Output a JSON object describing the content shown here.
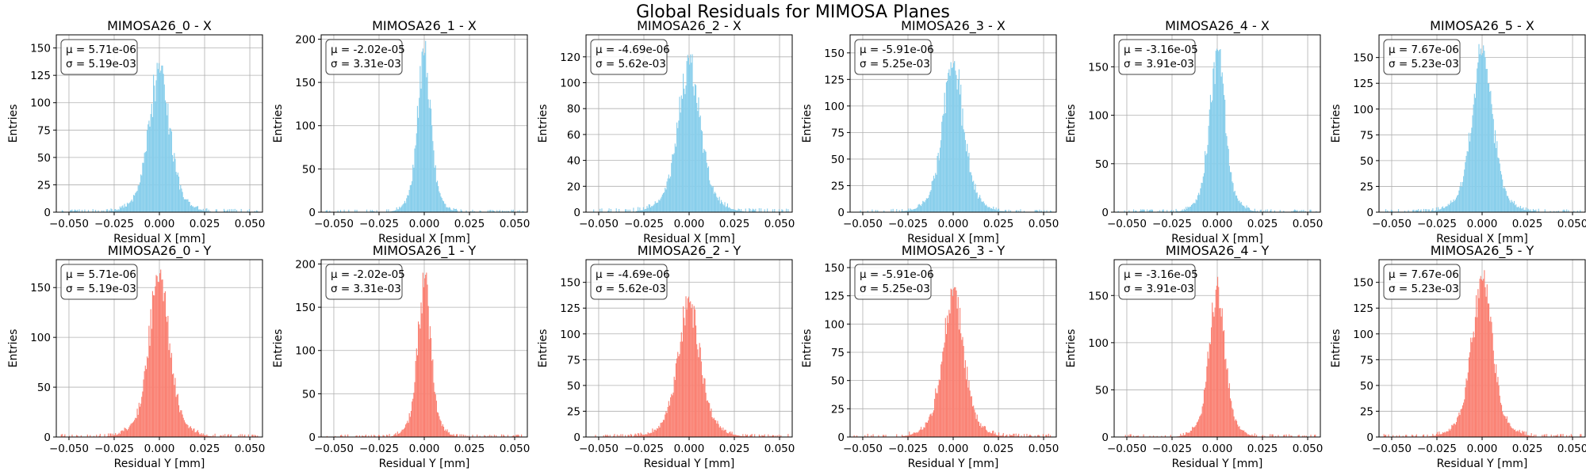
{
  "suptitle": "Global Residuals for MIMOSA Planes",
  "colors": {
    "x_hist": "#87ceeb",
    "y_hist": "#fa8072",
    "grid": "#b0b0b0"
  },
  "chart_data": [
    {
      "type": "histogram",
      "title": "MIMOSA26_0 - X",
      "xlabel": "Residual X [mm]",
      "ylabel": "Entries",
      "xlim": [
        -0.057,
        0.057
      ],
      "ylim": [
        0,
        162
      ],
      "xticks": [
        -0.05,
        -0.025,
        0.0,
        0.025,
        0.05
      ],
      "xtick_labels": [
        "−0.050",
        "−0.025",
        "0.000",
        "0.025",
        "0.050"
      ],
      "yticks": [
        0,
        25,
        50,
        75,
        100,
        125,
        150
      ],
      "ytick_labels": [
        "0",
        "25",
        "50",
        "75",
        "100",
        "125",
        "150"
      ],
      "grid": true,
      "series": [
        {
          "type": "hist",
          "color": "#87ceeb",
          "peak": 138,
          "mean": 5.71e-06,
          "sigma": 0.00519
        }
      ],
      "stats": {
        "mu": "μ = 5.71e-06",
        "sigma": "σ = 5.19e-03"
      }
    },
    {
      "type": "histogram",
      "title": "MIMOSA26_1 - X",
      "xlabel": "Residual X [mm]",
      "ylabel": "Entries",
      "xlim": [
        -0.057,
        0.057
      ],
      "ylim": [
        0,
        205
      ],
      "xticks": [
        -0.05,
        -0.025,
        0.0,
        0.025,
        0.05
      ],
      "xtick_labels": [
        "−0.050",
        "−0.025",
        "0.000",
        "0.025",
        "0.050"
      ],
      "yticks": [
        0,
        50,
        100,
        150,
        200
      ],
      "ytick_labels": [
        "0",
        "50",
        "100",
        "150",
        "200"
      ],
      "grid": true,
      "series": [
        {
          "type": "hist",
          "color": "#87ceeb",
          "peak": 198,
          "mean": -2.02e-05,
          "sigma": 0.00331
        }
      ],
      "stats": {
        "mu": "μ = -2.02e-05",
        "sigma": "σ = 3.31e-03"
      }
    },
    {
      "type": "histogram",
      "title": "MIMOSA26_2 - X",
      "xlabel": "Residual X [mm]",
      "ylabel": "Entries",
      "xlim": [
        -0.057,
        0.057
      ],
      "ylim": [
        0,
        137
      ],
      "xticks": [
        -0.05,
        -0.025,
        0.0,
        0.025,
        0.05
      ],
      "xtick_labels": [
        "−0.050",
        "−0.025",
        "0.000",
        "0.025",
        "0.050"
      ],
      "yticks": [
        0,
        20,
        40,
        60,
        80,
        100,
        120
      ],
      "ytick_labels": [
        "0",
        "20",
        "40",
        "60",
        "80",
        "100",
        "120"
      ],
      "grid": true,
      "series": [
        {
          "type": "hist",
          "color": "#87ceeb",
          "peak": 122,
          "mean": -4.69e-06,
          "sigma": 0.00562
        }
      ],
      "stats": {
        "mu": "μ = -4.69e-06",
        "sigma": "σ = 5.62e-03"
      }
    },
    {
      "type": "histogram",
      "title": "MIMOSA26_3 - X",
      "xlabel": "Residual X [mm]",
      "ylabel": "Entries",
      "xlim": [
        -0.057,
        0.057
      ],
      "ylim": [
        0,
        167
      ],
      "xticks": [
        -0.05,
        -0.025,
        0.0,
        0.025,
        0.05
      ],
      "xtick_labels": [
        "−0.050",
        "−0.025",
        "0.000",
        "0.025",
        "0.050"
      ],
      "yticks": [
        0,
        25,
        50,
        75,
        100,
        125,
        150
      ],
      "ytick_labels": [
        "0",
        "25",
        "50",
        "75",
        "100",
        "125",
        "150"
      ],
      "grid": true,
      "series": [
        {
          "type": "hist",
          "color": "#87ceeb",
          "peak": 145,
          "mean": -5.91e-06,
          "sigma": 0.00525
        }
      ],
      "stats": {
        "mu": "μ = -5.91e-06",
        "sigma": "σ = 5.25e-03"
      }
    },
    {
      "type": "histogram",
      "title": "MIMOSA26_4 - X",
      "xlabel": "Residual X [mm]",
      "ylabel": "Entries",
      "xlim": [
        -0.057,
        0.057
      ],
      "ylim": [
        0,
        183
      ],
      "xticks": [
        -0.05,
        -0.025,
        0.0,
        0.025,
        0.05
      ],
      "xtick_labels": [
        "−0.050",
        "−0.025",
        "0.000",
        "0.025",
        "0.050"
      ],
      "yticks": [
        0,
        50,
        100,
        150
      ],
      "ytick_labels": [
        "0",
        "50",
        "100",
        "150"
      ],
      "grid": true,
      "series": [
        {
          "type": "hist",
          "color": "#87ceeb",
          "peak": 175,
          "mean": -3.16e-05,
          "sigma": 0.00391
        }
      ],
      "stats": {
        "mu": "μ = -3.16e-05",
        "sigma": "σ = 3.91e-03"
      }
    },
    {
      "type": "histogram",
      "title": "MIMOSA26_5 - X",
      "xlabel": "Residual X [mm]",
      "ylabel": "Entries",
      "xlim": [
        -0.057,
        0.057
      ],
      "ylim": [
        0,
        172
      ],
      "xticks": [
        -0.05,
        -0.025,
        0.0,
        0.025,
        0.05
      ],
      "xtick_labels": [
        "−0.050",
        "−0.025",
        "0.000",
        "0.025",
        "0.050"
      ],
      "yticks": [
        0,
        25,
        50,
        75,
        100,
        125,
        150
      ],
      "ytick_labels": [
        "0",
        "25",
        "50",
        "75",
        "100",
        "125",
        "150"
      ],
      "grid": true,
      "series": [
        {
          "type": "hist",
          "color": "#87ceeb",
          "peak": 163,
          "mean": 7.67e-06,
          "sigma": 0.00523
        }
      ],
      "stats": {
        "mu": "μ = 7.67e-06",
        "sigma": "σ = 5.23e-03"
      }
    },
    {
      "type": "histogram",
      "title": "MIMOSA26_0 - Y",
      "xlabel": "Residual Y [mm]",
      "ylabel": "Entries",
      "xlim": [
        -0.057,
        0.057
      ],
      "ylim": [
        0,
        178
      ],
      "xticks": [
        -0.05,
        -0.025,
        0.0,
        0.025,
        0.05
      ],
      "xtick_labels": [
        "−0.050",
        "−0.025",
        "0.000",
        "0.025",
        "0.050"
      ],
      "yticks": [
        0,
        50,
        100,
        150
      ],
      "ytick_labels": [
        "0",
        "50",
        "100",
        "150"
      ],
      "grid": true,
      "series": [
        {
          "type": "hist",
          "color": "#fa8072",
          "peak": 170,
          "mean": 5.71e-06,
          "sigma": 0.00519
        }
      ],
      "stats": {
        "mu": "μ = 5.71e-06",
        "sigma": "σ = 5.19e-03"
      }
    },
    {
      "type": "histogram",
      "title": "MIMOSA26_1 - Y",
      "xlabel": "Residual Y [mm]",
      "ylabel": "Entries",
      "xlim": [
        -0.057,
        0.057
      ],
      "ylim": [
        0,
        205
      ],
      "xticks": [
        -0.05,
        -0.025,
        0.0,
        0.025,
        0.05
      ],
      "xtick_labels": [
        "−0.050",
        "−0.025",
        "0.000",
        "0.025",
        "0.050"
      ],
      "yticks": [
        0,
        50,
        100,
        150,
        200
      ],
      "ytick_labels": [
        "0",
        "50",
        "100",
        "150",
        "200"
      ],
      "grid": true,
      "series": [
        {
          "type": "hist",
          "color": "#fa8072",
          "peak": 190,
          "mean": -2.02e-05,
          "sigma": 0.00331
        }
      ],
      "stats": {
        "mu": "μ = -2.02e-05",
        "sigma": "σ = 3.31e-03"
      }
    },
    {
      "type": "histogram",
      "title": "MIMOSA26_2 - Y",
      "xlabel": "Residual Y [mm]",
      "ylabel": "Entries",
      "xlim": [
        -0.057,
        0.057
      ],
      "ylim": [
        0,
        172
      ],
      "xticks": [
        -0.05,
        -0.025,
        0.0,
        0.025,
        0.05
      ],
      "xtick_labels": [
        "−0.050",
        "−0.025",
        "0.000",
        "0.025",
        "0.050"
      ],
      "yticks": [
        0,
        25,
        50,
        75,
        100,
        125,
        150
      ],
      "ytick_labels": [
        "0",
        "25",
        "50",
        "75",
        "100",
        "125",
        "150"
      ],
      "grid": true,
      "series": [
        {
          "type": "hist",
          "color": "#fa8072",
          "peak": 137,
          "mean": -4.69e-06,
          "sigma": 0.00562
        }
      ],
      "stats": {
        "mu": "μ = -4.69e-06",
        "sigma": "σ = 5.62e-03"
      }
    },
    {
      "type": "histogram",
      "title": "MIMOSA26_3 - Y",
      "xlabel": "Residual Y [mm]",
      "ylabel": "Entries",
      "xlim": [
        -0.057,
        0.057
      ],
      "ylim": [
        0,
        157
      ],
      "xticks": [
        -0.05,
        -0.025,
        0.0,
        0.025,
        0.05
      ],
      "xtick_labels": [
        "−0.050",
        "−0.025",
        "0.000",
        "0.025",
        "0.050"
      ],
      "yticks": [
        0,
        25,
        50,
        75,
        100,
        125,
        150
      ],
      "ytick_labels": [
        "0",
        "25",
        "50",
        "75",
        "100",
        "125",
        "150"
      ],
      "grid": true,
      "series": [
        {
          "type": "hist",
          "color": "#fa8072",
          "peak": 138,
          "mean": -5.91e-06,
          "sigma": 0.00525
        }
      ],
      "stats": {
        "mu": "μ = -5.91e-06",
        "sigma": "σ = 5.25e-03"
      }
    },
    {
      "type": "histogram",
      "title": "MIMOSA26_4 - Y",
      "xlabel": "Residual Y [mm]",
      "ylabel": "Entries",
      "xlim": [
        -0.057,
        0.057
      ],
      "ylim": [
        0,
        188
      ],
      "xticks": [
        -0.05,
        -0.025,
        0.0,
        0.025,
        0.05
      ],
      "xtick_labels": [
        "−0.050",
        "−0.025",
        "0.000",
        "0.025",
        "0.050"
      ],
      "yticks": [
        0,
        50,
        100,
        150
      ],
      "ytick_labels": [
        "0",
        "50",
        "100",
        "150"
      ],
      "grid": true,
      "series": [
        {
          "type": "hist",
          "color": "#fa8072",
          "peak": 172,
          "mean": -3.16e-05,
          "sigma": 0.00391
        }
      ],
      "stats": {
        "mu": "μ = -3.16e-05",
        "sigma": "σ = 3.91e-03"
      }
    },
    {
      "type": "histogram",
      "title": "MIMOSA26_5 - Y",
      "xlabel": "Residual Y [mm]",
      "ylabel": "Entries",
      "xlim": [
        -0.057,
        0.057
      ],
      "ylim": [
        0,
        172
      ],
      "xticks": [
        -0.05,
        -0.025,
        0.0,
        0.025,
        0.05
      ],
      "xtick_labels": [
        "−0.050",
        "−0.025",
        "0.000",
        "0.025",
        "0.050"
      ],
      "yticks": [
        0,
        25,
        50,
        75,
        100,
        125,
        150
      ],
      "ytick_labels": [
        "0",
        "25",
        "50",
        "75",
        "100",
        "125",
        "150"
      ],
      "grid": true,
      "series": [
        {
          "type": "hist",
          "color": "#fa8072",
          "peak": 163,
          "mean": 7.67e-06,
          "sigma": 0.00523
        }
      ],
      "stats": {
        "mu": "μ = 7.67e-06",
        "sigma": "σ = 5.23e-03"
      }
    }
  ]
}
